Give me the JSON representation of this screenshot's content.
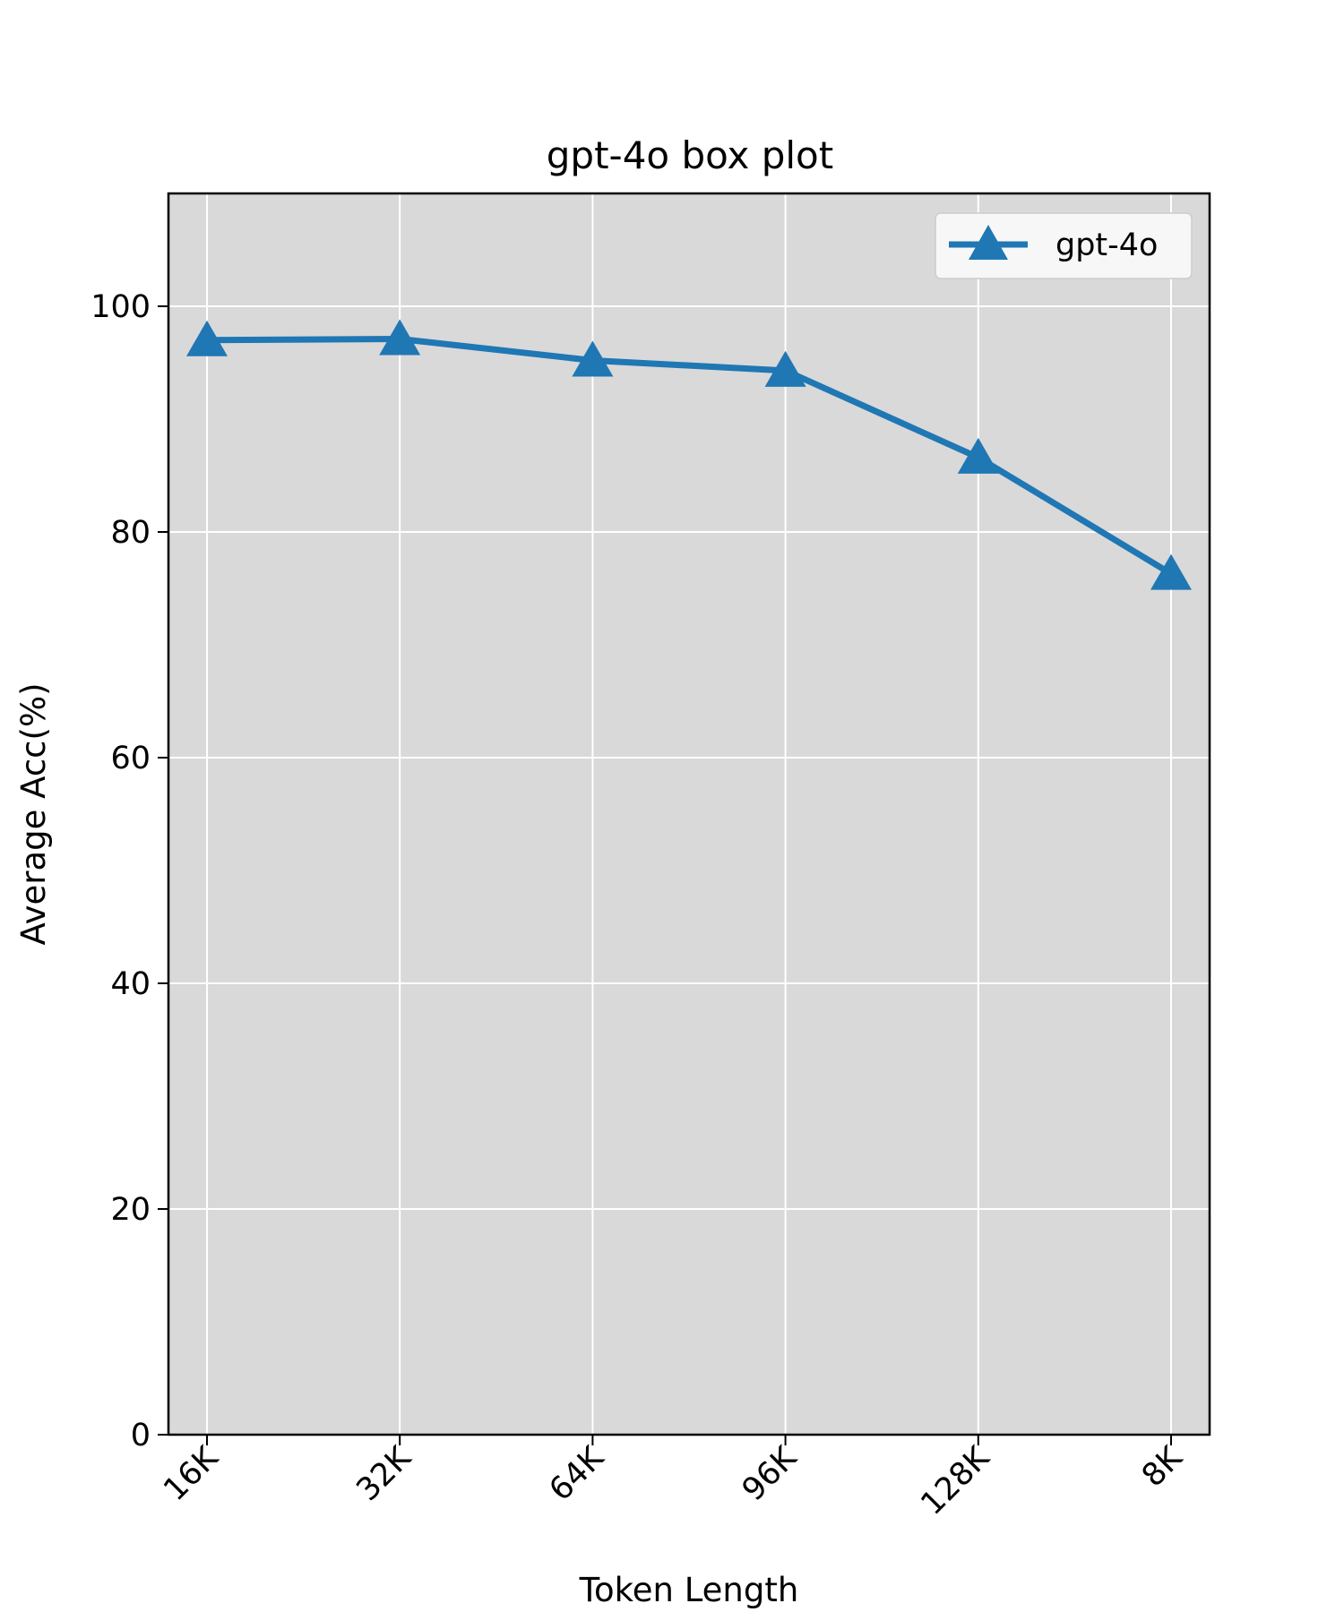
{
  "chart_data": {
    "type": "line",
    "title": "gpt-4o box plot",
    "xlabel": "Token Length",
    "ylabel": "Average Acc(%)",
    "categories": [
      "16K",
      "32K",
      "64K",
      "96K",
      "128K",
      "8K"
    ],
    "series": [
      {
        "name": "gpt-4o",
        "values": [
          97.0,
          97.1,
          95.2,
          94.3,
          86.6,
          76.3
        ],
        "color": "#1f77b4",
        "marker": "triangle-up"
      }
    ],
    "ylim": [
      0,
      110
    ],
    "yticks": [
      0,
      20,
      40,
      60,
      80,
      100
    ],
    "grid": true,
    "legend_position": "top-right",
    "plot_background": "#d9d9d9",
    "legend_background": "#f7f7f7"
  }
}
